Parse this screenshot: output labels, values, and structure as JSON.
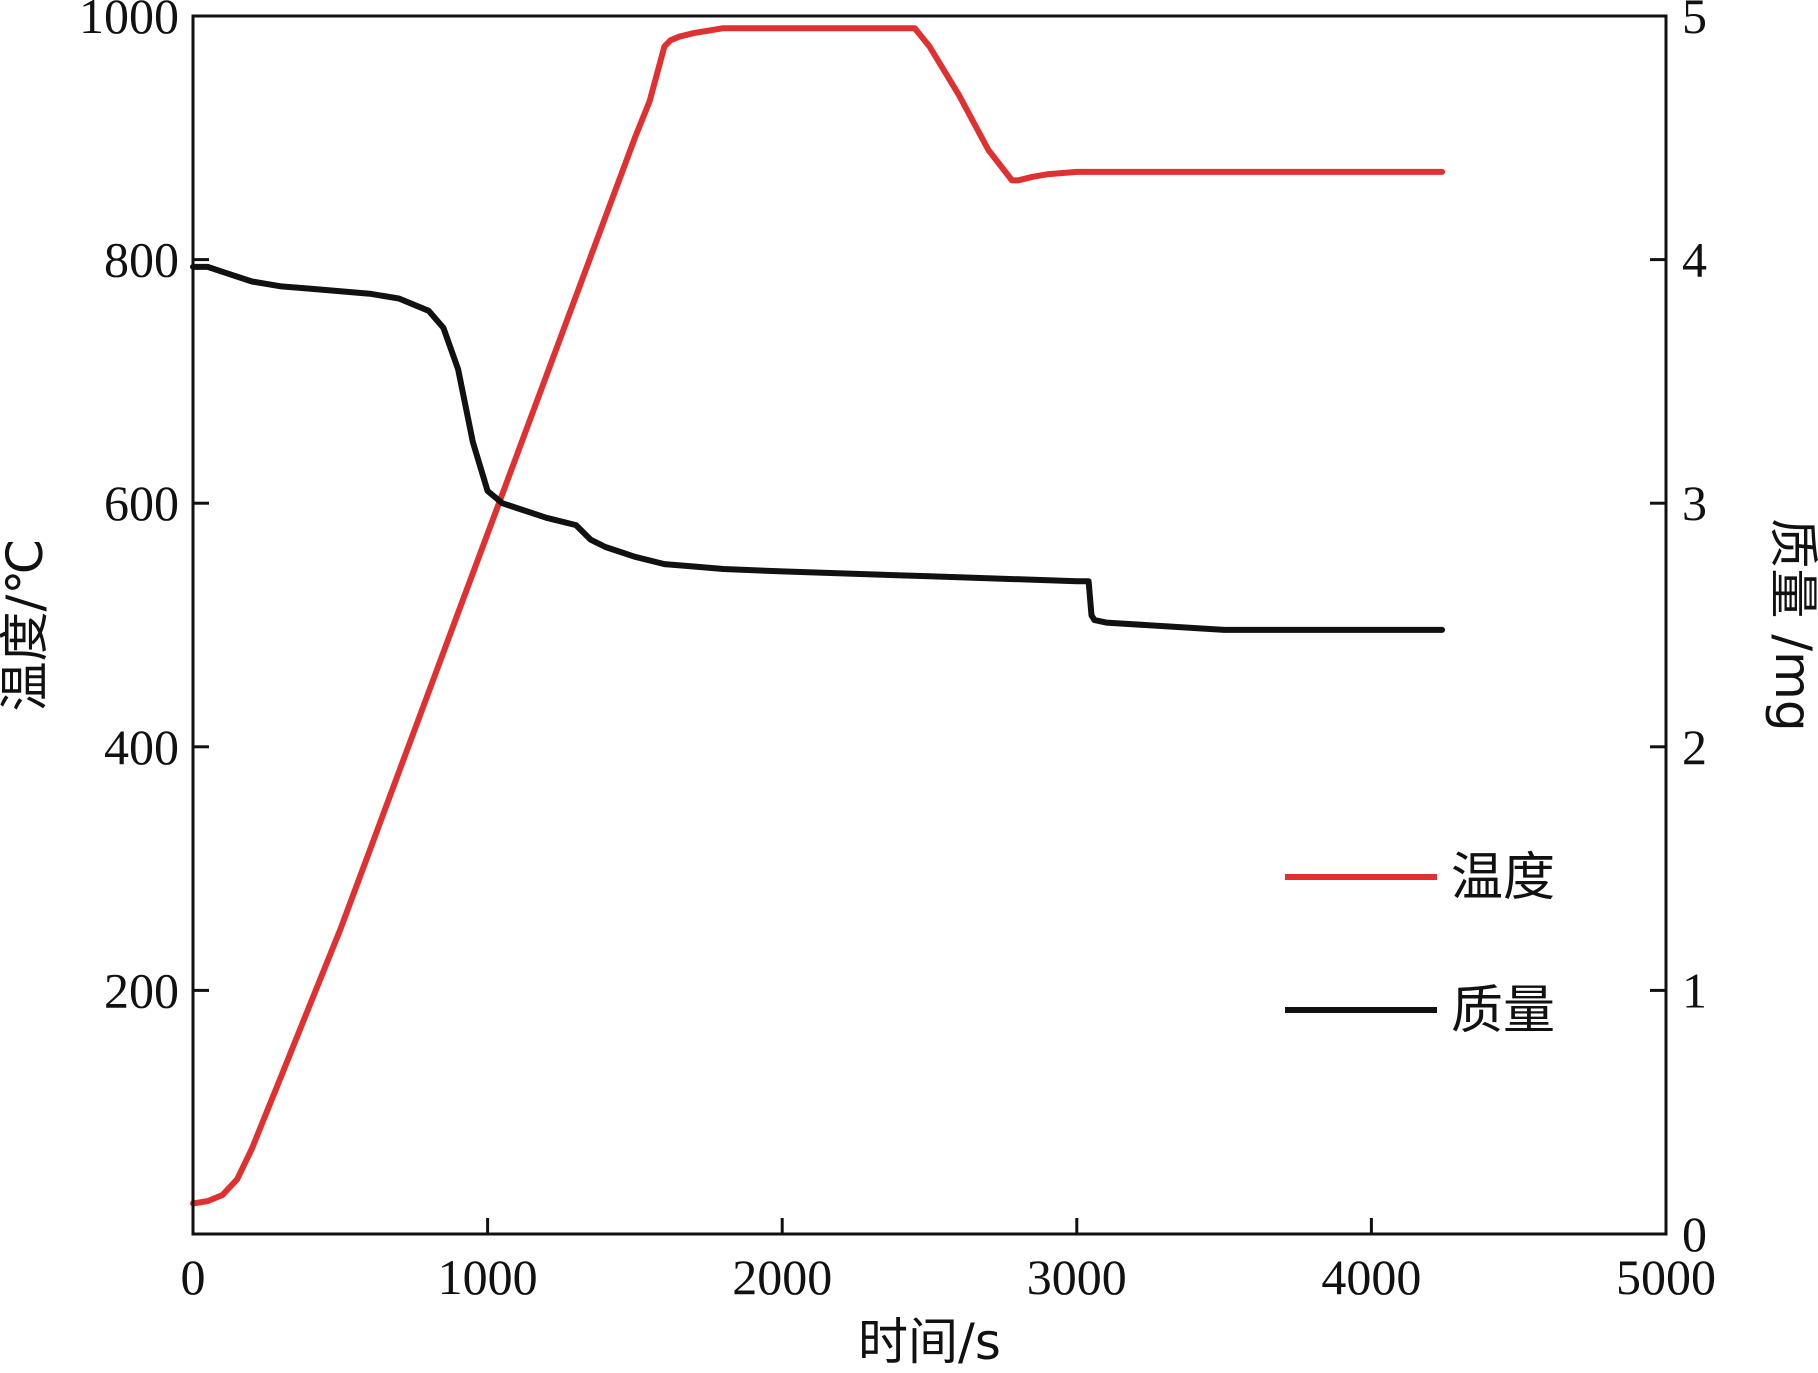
{
  "chart_data": {
    "type": "line",
    "xlabel": "时间/s",
    "ylabel_left": "温度/℃",
    "ylabel_right": "质量 /mg",
    "xlim": [
      0,
      5000
    ],
    "ylim_left": [
      0,
      1000
    ],
    "ylim_right": [
      0,
      5
    ],
    "x_ticks": [
      "0",
      "1000",
      "2000",
      "3000",
      "4000",
      "5000"
    ],
    "y_left_ticks": [
      "200",
      "400",
      "600",
      "800",
      "1000"
    ],
    "y_right_ticks": [
      "0",
      "1",
      "2",
      "3",
      "4",
      "5"
    ],
    "grid": false,
    "legend_position": "lower-right",
    "series": [
      {
        "name": "温度",
        "axis": "left",
        "color": "#e03030",
        "x": [
          0,
          50,
          100,
          150,
          200,
          250,
          300,
          400,
          500,
          600,
          700,
          800,
          900,
          1000,
          1100,
          1200,
          1300,
          1400,
          1500,
          1550,
          1600,
          1620,
          1650,
          1700,
          1800,
          2000,
          2200,
          2400,
          2450,
          2500,
          2600,
          2700,
          2780,
          2800,
          2850,
          2900,
          3000,
          3050,
          3100,
          3500,
          4000,
          4240
        ],
        "y": [
          25,
          27,
          32,
          45,
          70,
          100,
          130,
          190,
          250,
          315,
          380,
          445,
          510,
          575,
          640,
          705,
          770,
          835,
          900,
          930,
          975,
          980,
          983,
          986,
          990,
          990,
          990,
          990,
          990,
          975,
          935,
          890,
          865,
          865,
          868,
          870,
          872,
          872,
          872,
          872,
          872,
          872
        ]
      },
      {
        "name": "质量",
        "axis": "right",
        "color": "#111111",
        "x": [
          0,
          50,
          100,
          200,
          300,
          400,
          500,
          600,
          700,
          800,
          850,
          900,
          950,
          1000,
          1050,
          1100,
          1200,
          1300,
          1350,
          1400,
          1450,
          1500,
          1600,
          1700,
          1800,
          2000,
          2500,
          3000,
          3040,
          3050,
          3060,
          3100,
          3500,
          4000,
          4240
        ],
        "y": [
          3.97,
          3.97,
          3.95,
          3.91,
          3.89,
          3.88,
          3.87,
          3.86,
          3.84,
          3.79,
          3.72,
          3.55,
          3.25,
          3.05,
          3.0,
          2.98,
          2.94,
          2.91,
          2.85,
          2.82,
          2.8,
          2.78,
          2.75,
          2.74,
          2.73,
          2.72,
          2.7,
          2.68,
          2.68,
          2.54,
          2.52,
          2.51,
          2.48,
          2.48,
          2.48
        ]
      }
    ]
  }
}
